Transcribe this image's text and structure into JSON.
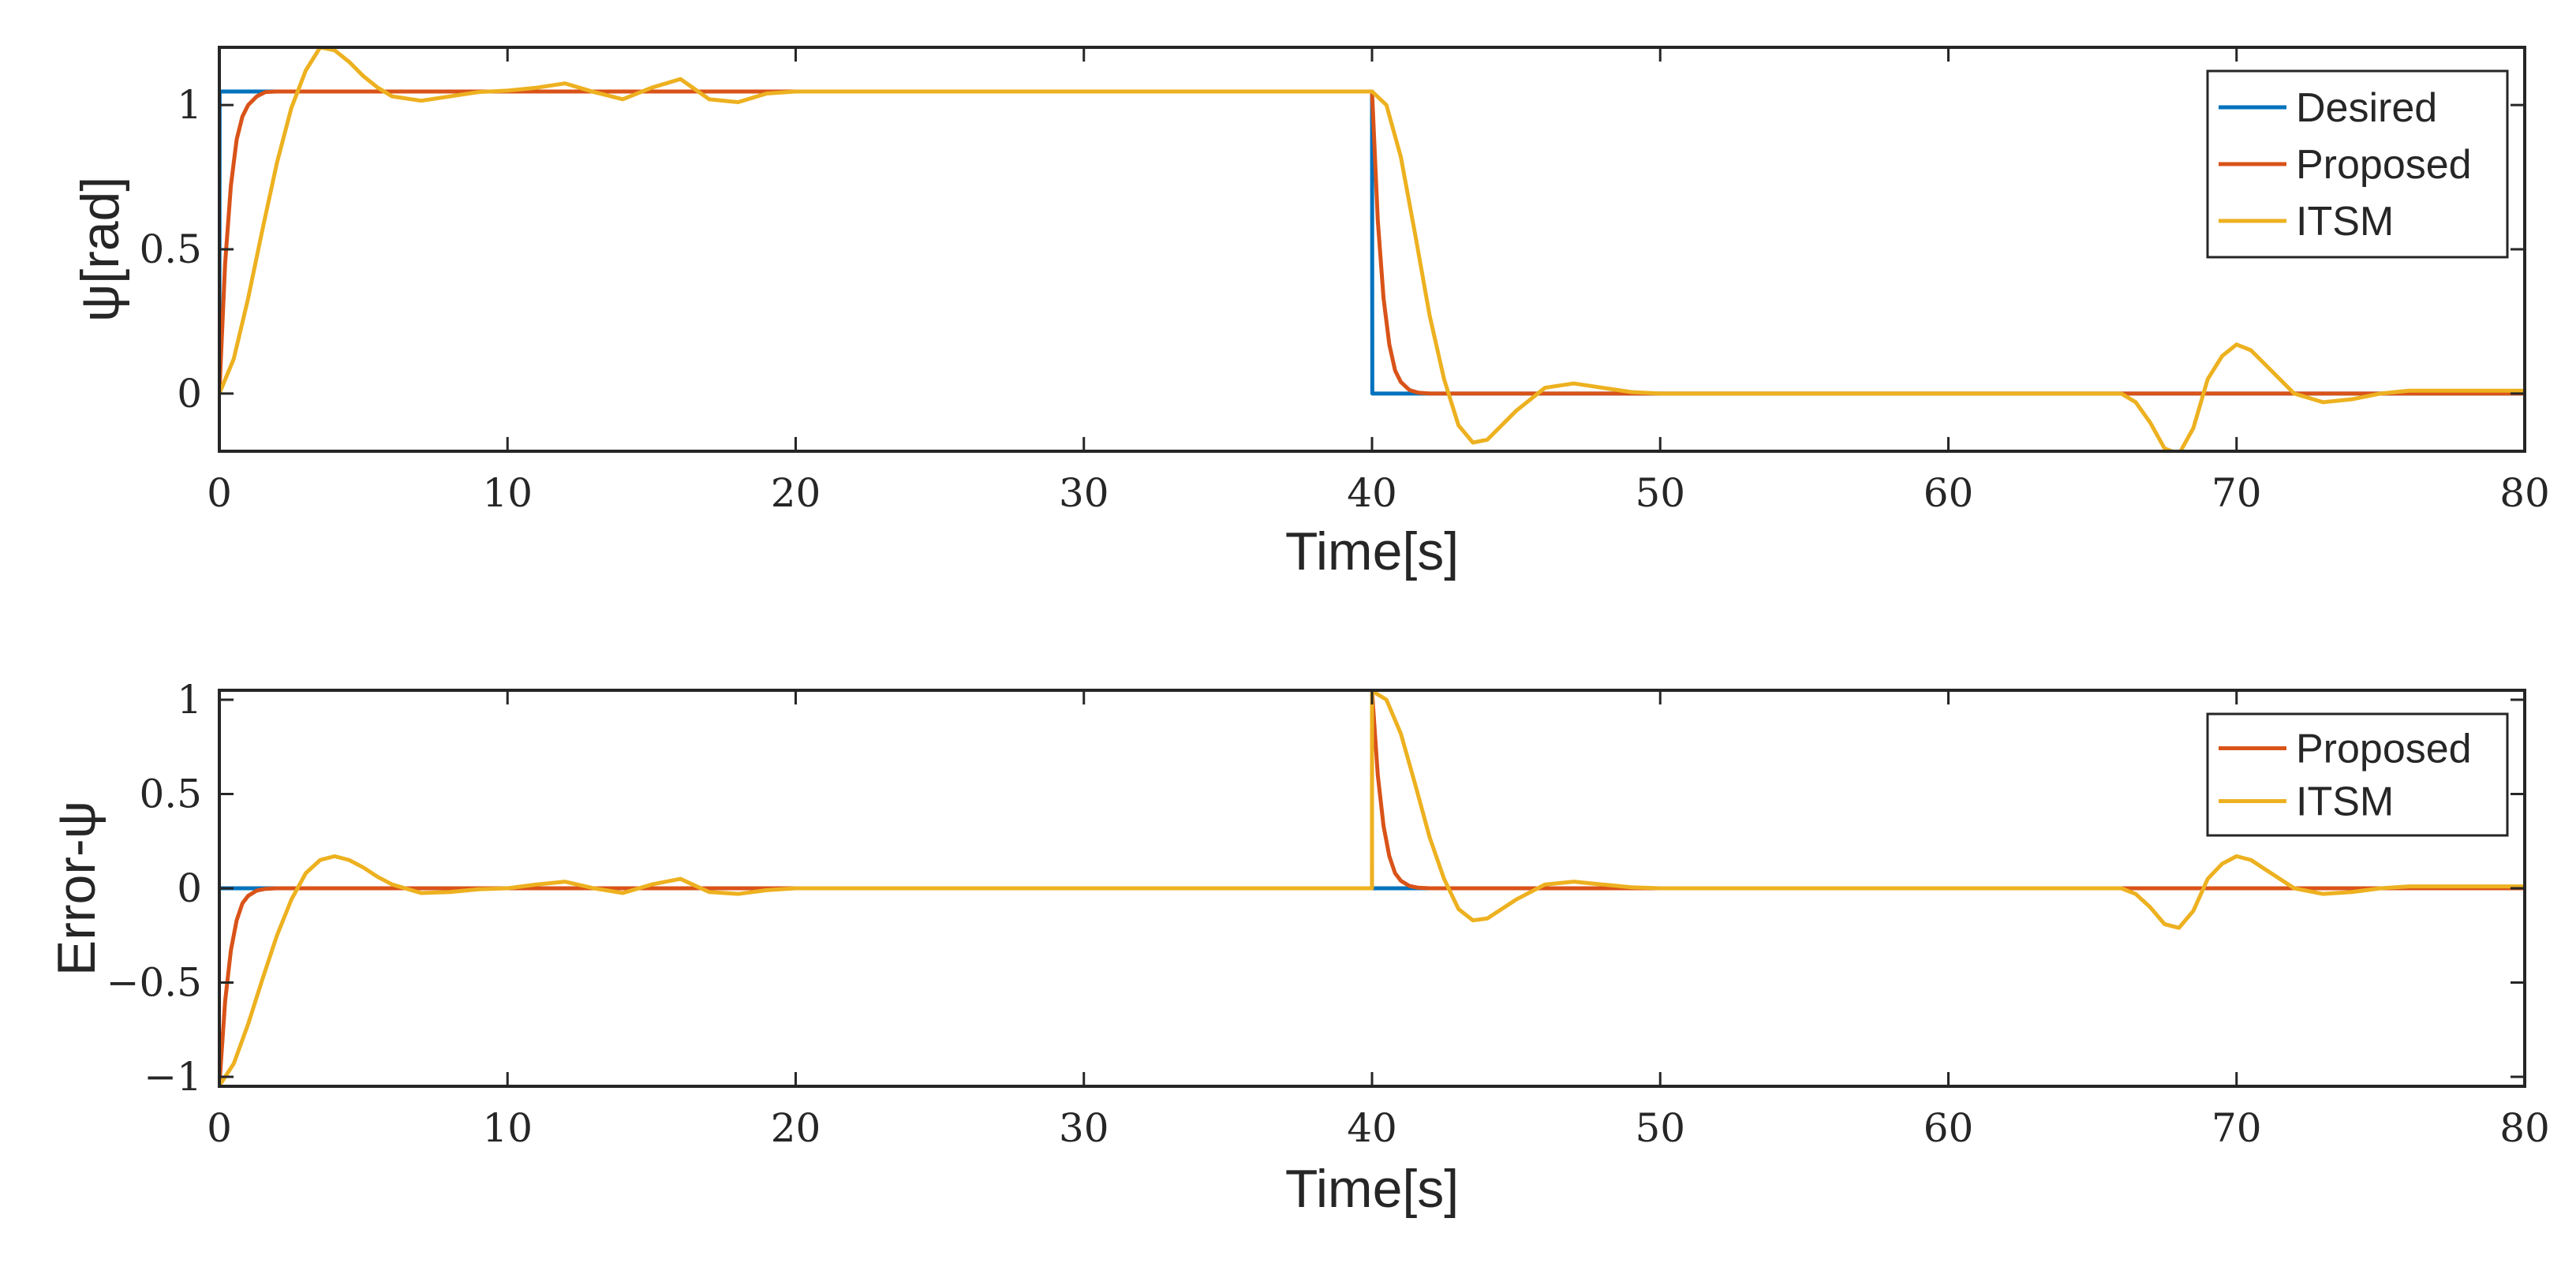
{
  "chart_data": [
    {
      "type": "line",
      "xlabel": "Time[s]",
      "ylabel": "ψ[rad]",
      "xlim": [
        0,
        80
      ],
      "ylim": [
        -0.2,
        1.2
      ],
      "xticks": [
        0,
        10,
        20,
        30,
        40,
        50,
        60,
        70,
        80
      ],
      "yticks": [
        0,
        0.5,
        1
      ],
      "ytick_labels": [
        "0",
        "0.5",
        "1"
      ],
      "grid": false,
      "legend_position": "top-right",
      "series": [
        {
          "name": "Desired",
          "color": "#0072BD",
          "x": [
            0,
            0.01,
            40,
            40.01,
            80
          ],
          "y": [
            0,
            1.047,
            1.047,
            0,
            0
          ]
        },
        {
          "name": "Proposed",
          "color": "#D95319",
          "x": [
            0,
            0.2,
            0.4,
            0.6,
            0.8,
            1.0,
            1.3,
            1.6,
            2.0,
            40,
            40.2,
            40.4,
            40.6,
            40.8,
            41.0,
            41.3,
            41.6,
            42.0,
            80
          ],
          "y": [
            0,
            0.45,
            0.72,
            0.88,
            0.96,
            1.0,
            1.03,
            1.045,
            1.047,
            1.047,
            0.6,
            0.33,
            0.17,
            0.08,
            0.04,
            0.012,
            0.003,
            0,
            0
          ]
        },
        {
          "name": "ITSM",
          "color": "#EDB120",
          "x": [
            0,
            0.5,
            1.0,
            1.5,
            2.0,
            2.5,
            3.0,
            3.5,
            4.0,
            4.5,
            5.0,
            5.5,
            6.0,
            7.0,
            8.0,
            9.0,
            10.0,
            11.0,
            12.0,
            13.0,
            14.0,
            15.0,
            16.0,
            17.0,
            18.0,
            19.0,
            20.0,
            40.0,
            40.5,
            41.0,
            41.5,
            42.0,
            42.5,
            43.0,
            43.5,
            44.0,
            44.5,
            45.0,
            46.0,
            47.0,
            48.0,
            49.0,
            50.0,
            66.0,
            66.5,
            67.0,
            67.5,
            68.0,
            68.5,
            69.0,
            69.5,
            70.0,
            70.5,
            71.0,
            72.0,
            73.0,
            74.0,
            75.0,
            76.0,
            80.0
          ],
          "y": [
            0,
            0.12,
            0.33,
            0.57,
            0.8,
            0.99,
            1.12,
            1.2,
            1.19,
            1.15,
            1.1,
            1.06,
            1.03,
            1.015,
            1.03,
            1.045,
            1.05,
            1.06,
            1.075,
            1.045,
            1.02,
            1.06,
            1.09,
            1.02,
            1.01,
            1.04,
            1.047,
            1.047,
            1.0,
            0.82,
            0.55,
            0.27,
            0.05,
            -0.11,
            -0.17,
            -0.16,
            -0.11,
            -0.06,
            0.02,
            0.035,
            0.02,
            0.005,
            0,
            0,
            -0.03,
            -0.1,
            -0.19,
            -0.21,
            -0.12,
            0.05,
            0.13,
            0.17,
            0.15,
            0.1,
            0.0,
            -0.03,
            -0.02,
            0.0,
            0.01,
            0.01
          ]
        }
      ]
    },
    {
      "type": "line",
      "xlabel": "Time[s]",
      "ylabel": "Error-ψ",
      "xlim": [
        0,
        80
      ],
      "ylim": [
        -1.05,
        1.05
      ],
      "xticks": [
        0,
        10,
        20,
        30,
        40,
        50,
        60,
        70,
        80
      ],
      "yticks": [
        -1,
        -0.5,
        0,
        0.5,
        1
      ],
      "ytick_labels": [
        "−1",
        "−0.5",
        "0",
        "0.5",
        "1"
      ],
      "grid": false,
      "legend_position": "top-right",
      "series": [
        {
          "color": "#0072BD",
          "x": [
            0,
            80
          ],
          "y": [
            0,
            0
          ]
        },
        {
          "name": "Proposed",
          "color": "#D95319",
          "x": [
            0,
            0.2,
            0.4,
            0.6,
            0.8,
            1.0,
            1.3,
            1.6,
            2.0,
            39.999,
            40.0,
            40.2,
            40.4,
            40.6,
            40.8,
            41.0,
            41.3,
            41.6,
            42.0,
            80
          ],
          "y": [
            -1.047,
            -0.6,
            -0.33,
            -0.17,
            -0.08,
            -0.04,
            -0.012,
            -0.003,
            0,
            0,
            1.047,
            0.6,
            0.33,
            0.17,
            0.08,
            0.04,
            0.012,
            0.003,
            0,
            0
          ]
        },
        {
          "name": "ITSM",
          "color": "#EDB120",
          "x": [
            0,
            0.5,
            1.0,
            1.5,
            2.0,
            2.5,
            3.0,
            3.5,
            4.0,
            4.5,
            5.0,
            5.5,
            6.0,
            7.0,
            8.0,
            9.0,
            10.0,
            11.0,
            12.0,
            13.0,
            14.0,
            15.0,
            16.0,
            17.0,
            18.0,
            19.0,
            20.0,
            39.999,
            40.0,
            40.5,
            41.0,
            41.5,
            42.0,
            42.5,
            43.0,
            43.5,
            44.0,
            44.5,
            45.0,
            46.0,
            47.0,
            48.0,
            49.0,
            50.0,
            66.0,
            66.5,
            67.0,
            67.5,
            68.0,
            68.5,
            69.0,
            69.5,
            70.0,
            70.5,
            71.0,
            72.0,
            73.0,
            74.0,
            75.0,
            76.0,
            80.0
          ],
          "y": [
            -1.047,
            -0.93,
            -0.72,
            -0.48,
            -0.25,
            -0.06,
            0.08,
            0.15,
            0.17,
            0.15,
            0.11,
            0.06,
            0.02,
            -0.025,
            -0.02,
            -0.005,
            0.0,
            0.02,
            0.035,
            0.0,
            -0.025,
            0.02,
            0.05,
            -0.02,
            -0.03,
            -0.01,
            0.0,
            0.0,
            1.047,
            1.0,
            0.82,
            0.55,
            0.27,
            0.05,
            -0.11,
            -0.17,
            -0.16,
            -0.11,
            -0.06,
            0.02,
            0.035,
            0.02,
            0.005,
            0,
            0,
            -0.03,
            -0.1,
            -0.19,
            -0.21,
            -0.12,
            0.05,
            0.13,
            0.17,
            0.15,
            0.1,
            0.0,
            -0.03,
            -0.02,
            0.0,
            0.01,
            0.01
          ]
        }
      ]
    }
  ]
}
